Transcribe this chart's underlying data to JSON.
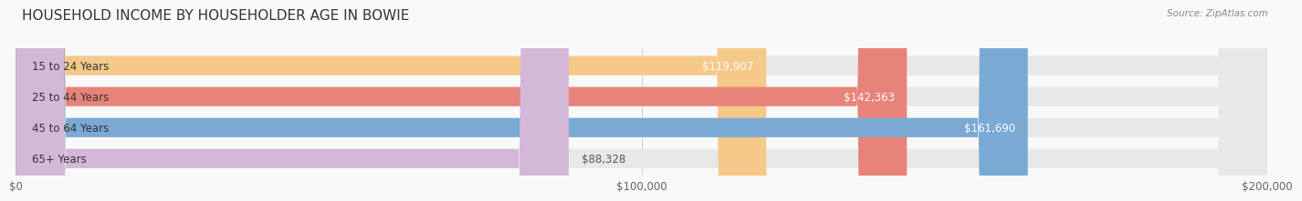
{
  "title": "HOUSEHOLD INCOME BY HOUSEHOLDER AGE IN BOWIE",
  "source": "Source: ZipAtlas.com",
  "categories": [
    "15 to 24 Years",
    "25 to 44 Years",
    "45 to 64 Years",
    "65+ Years"
  ],
  "values": [
    119907,
    142363,
    161690,
    88328
  ],
  "bar_colors": [
    "#f5c98a",
    "#e8837a",
    "#7aaad4",
    "#d4b8d8"
  ],
  "bar_bg_color": "#e8e8e8",
  "value_labels": [
    "$119,907",
    "$142,363",
    "$161,690",
    "$88,328"
  ],
  "xtick_labels": [
    "$0",
    "$100,000",
    "$200,000"
  ],
  "title_fontsize": 11,
  "label_fontsize": 8.5,
  "value_fontsize": 8.5,
  "source_fontsize": 7.5,
  "background_color": "#f9f9f9",
  "max_value": 200000
}
